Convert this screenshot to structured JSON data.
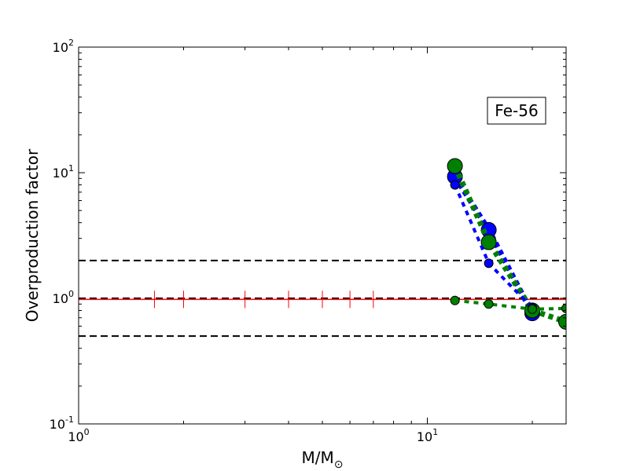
{
  "chart_data": {
    "type": "line",
    "x_scale": "log",
    "y_scale": "log",
    "xlim": [
      1,
      25
    ],
    "ylim": [
      0.1,
      100
    ],
    "xlabel": "M/M",
    "xlabel_sub": "⊙",
    "ylabel": "Overproduction factor",
    "annotation": "Fe-56",
    "x_ticks": [
      {
        "base": "10",
        "exp": "0",
        "value": 1
      },
      {
        "base": "10",
        "exp": "1",
        "value": 10
      }
    ],
    "y_ticks": [
      {
        "base": "10",
        "exp": "-1",
        "value": 0.1
      },
      {
        "base": "10",
        "exp": "0",
        "value": 1
      },
      {
        "base": "10",
        "exp": "1",
        "value": 10
      },
      {
        "base": "10",
        "exp": "2",
        "value": 100
      }
    ],
    "reference_lines": [
      {
        "y": 2.0,
        "color": "#000000",
        "style": "dashed"
      },
      {
        "y": 1.0,
        "color": "#000000",
        "style": "dashed"
      },
      {
        "y": 0.5,
        "color": "#000000",
        "style": "dashed"
      }
    ],
    "red_line": {
      "y": 0.98,
      "color": "#ff0000",
      "tick_x": [
        1.65,
        2.0,
        3.0,
        4.0,
        5.0,
        6.0,
        7.0
      ]
    },
    "series": [
      {
        "color": "#0000ff",
        "style": "dotted",
        "width": "thick",
        "x": [
          12,
          15,
          20
        ],
        "y": [
          9.3,
          3.5,
          0.76
        ]
      },
      {
        "color": "#008000",
        "style": "dotted",
        "width": "thick",
        "x": [
          12,
          15,
          20,
          25
        ],
        "y": [
          11.3,
          2.8,
          0.8,
          0.65
        ]
      },
      {
        "color": "#0000ff",
        "style": "dotted",
        "width": "thin",
        "x": [
          12,
          15,
          20
        ],
        "y": [
          8.0,
          1.9,
          0.84
        ]
      },
      {
        "color": "#008000",
        "style": "dotted",
        "width": "thin",
        "x": [
          12,
          15,
          20,
          25
        ],
        "y": [
          0.96,
          0.9,
          0.82,
          0.83
        ]
      }
    ]
  }
}
